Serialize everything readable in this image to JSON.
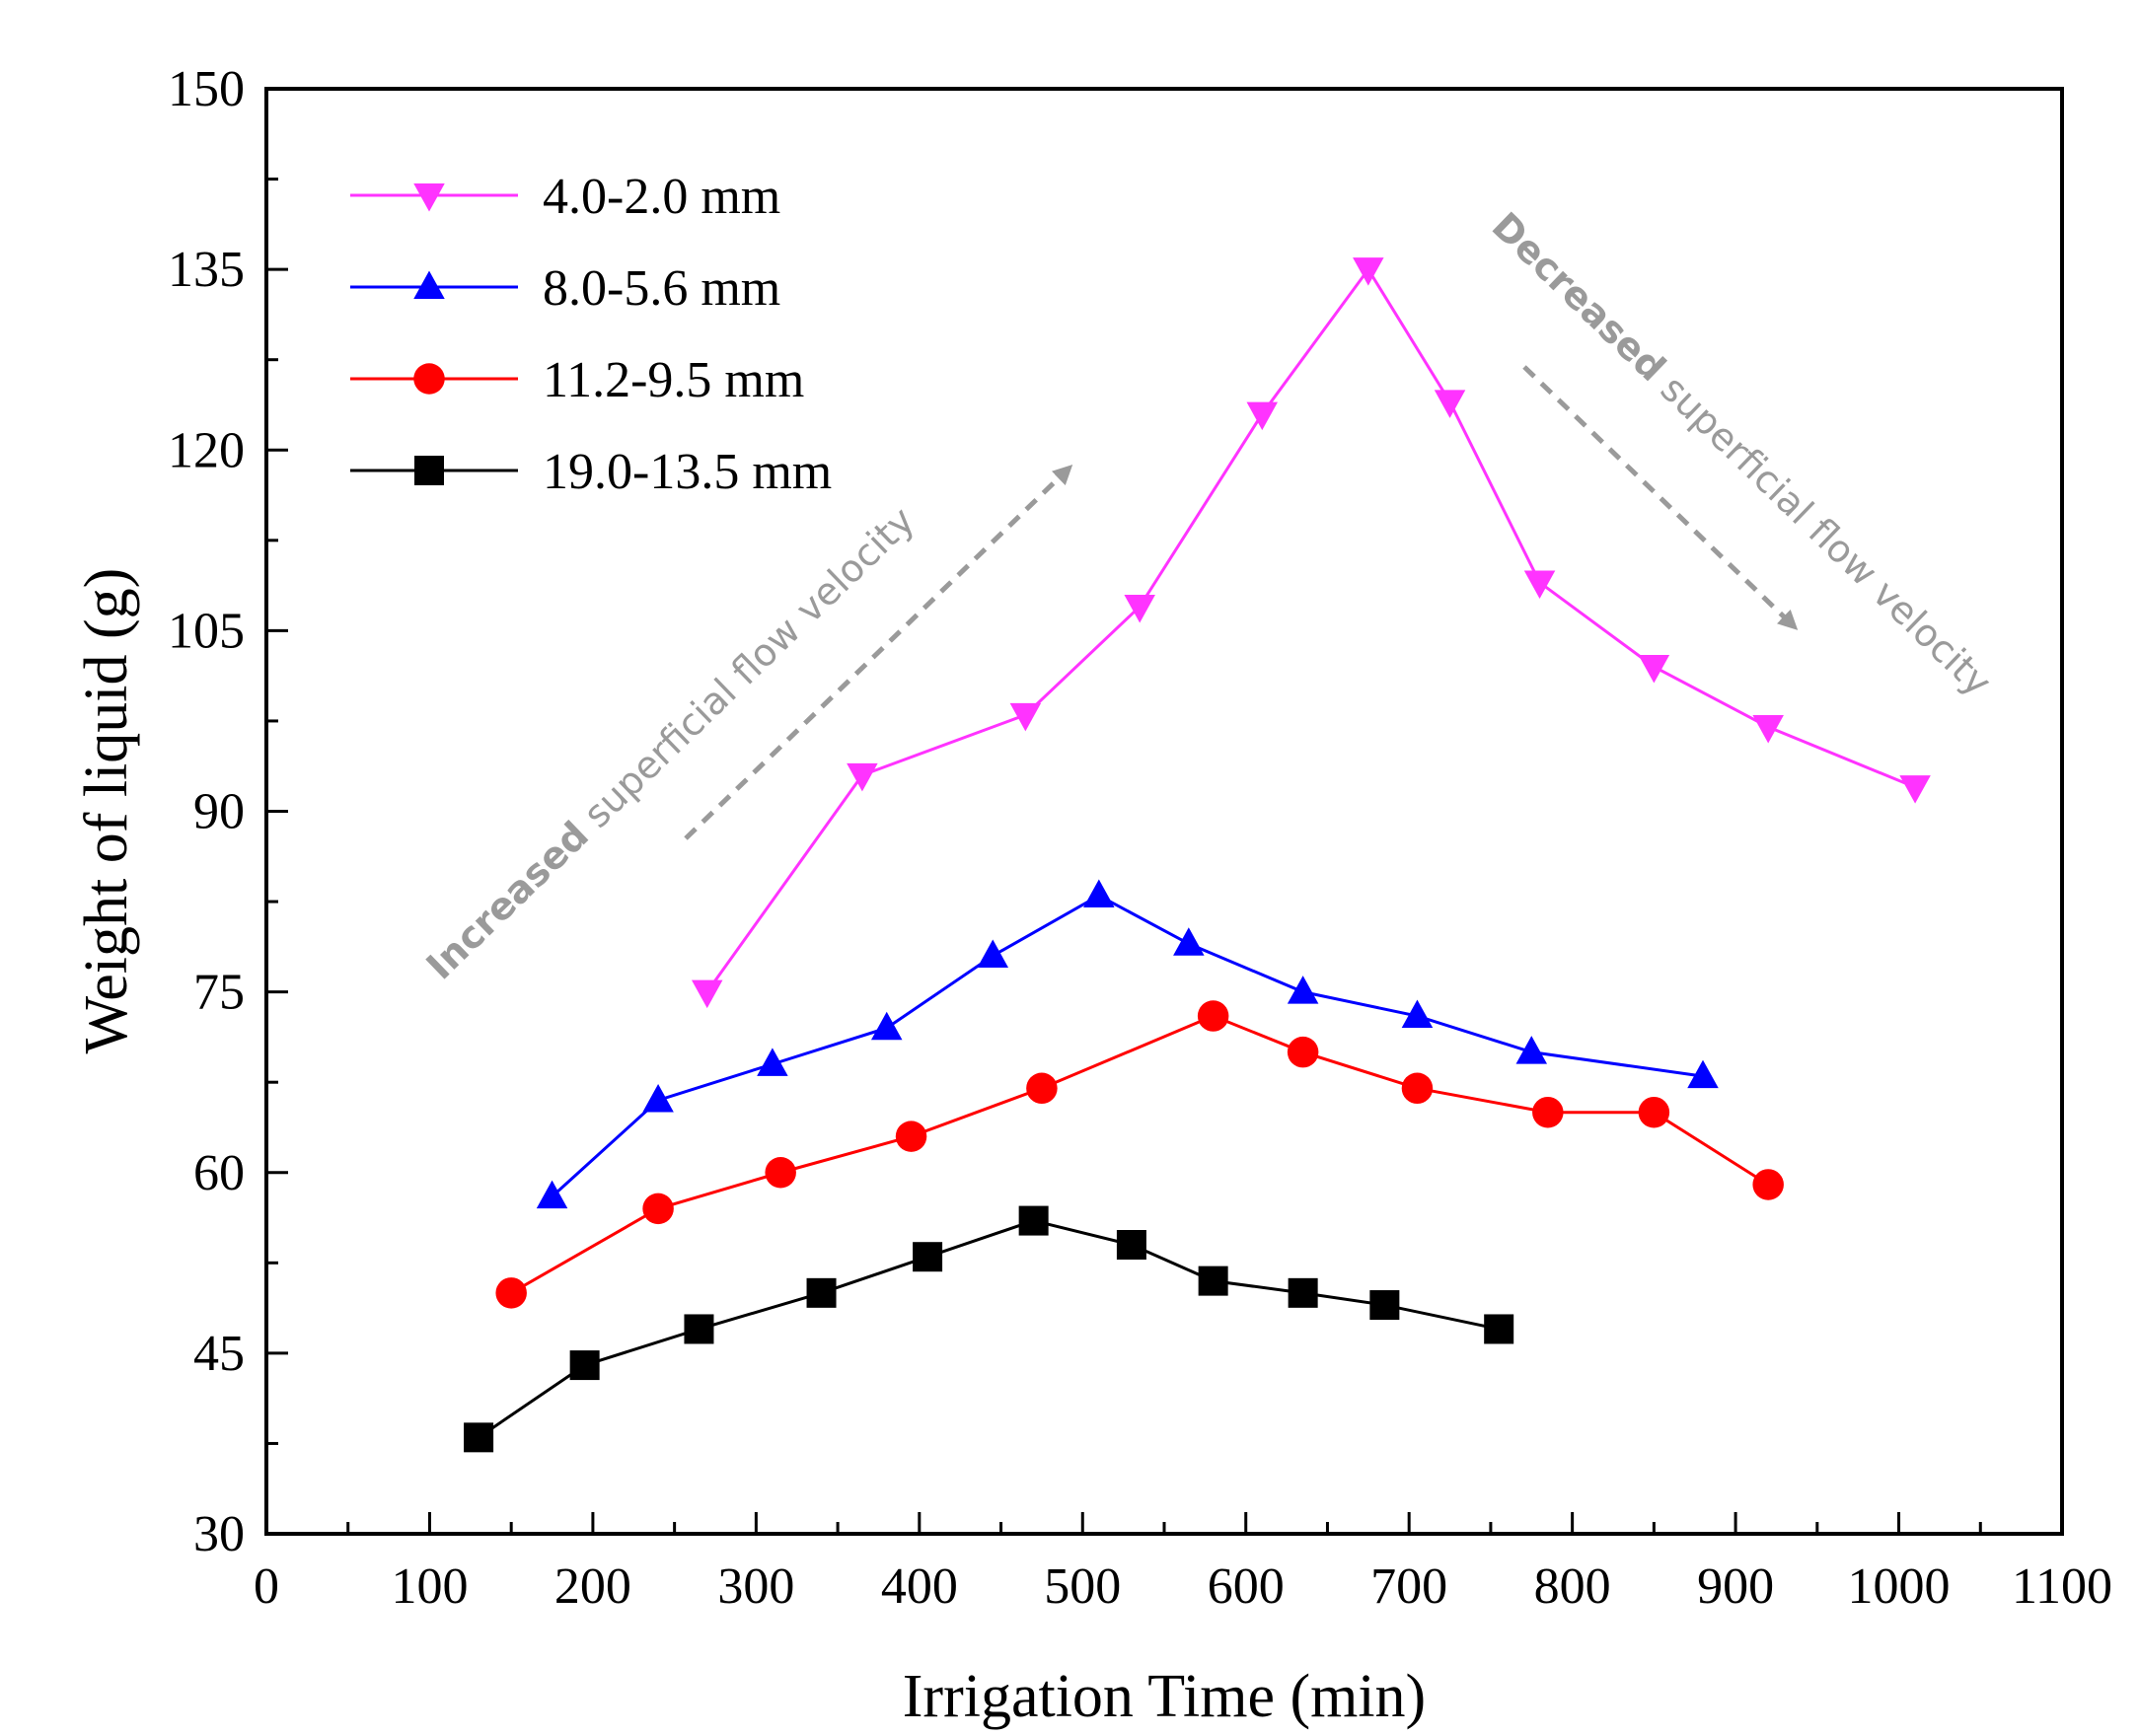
{
  "chart_data": {
    "type": "line",
    "title": "",
    "xlabel": "Irrigation Time (min)",
    "ylabel": "Weight of liquid (g)",
    "xlim": [
      0,
      1100
    ],
    "ylim": [
      30,
      150
    ],
    "x_ticks": [
      0,
      100,
      200,
      300,
      400,
      500,
      600,
      700,
      800,
      900,
      1000,
      1100
    ],
    "x_tick_labels": [
      "0",
      "100",
      "200",
      "300",
      "400",
      "500",
      "600",
      "700",
      "800",
      "900",
      "1000",
      "1100"
    ],
    "y_ticks": [
      30,
      45,
      60,
      75,
      90,
      105,
      120,
      135,
      150
    ],
    "y_tick_labels": [
      "30",
      "45",
      "60",
      "75",
      "90",
      "105",
      "120",
      "135",
      "150"
    ],
    "grid": false,
    "legend_position": "top-left",
    "series": [
      {
        "name": "4.0-2.0 mm",
        "color": "#ff33ff",
        "marker": "triangle-down",
        "x": [
          270,
          365,
          465,
          535,
          610,
          675,
          725,
          780,
          850,
          920,
          1010
        ],
        "y": [
          75,
          93,
          98,
          107,
          123,
          135,
          124,
          109,
          102,
          97,
          92
        ]
      },
      {
        "name": "8.0-5.6 mm",
        "color": "#0000ff",
        "marker": "triangle-up",
        "x": [
          175,
          240,
          310,
          380,
          445,
          510,
          565,
          635,
          705,
          775,
          880
        ],
        "y": [
          58,
          66,
          69,
          72,
          78,
          83,
          79,
          75,
          73,
          70,
          68
        ]
      },
      {
        "name": "11.2-9.5 mm",
        "color": "#ff0000",
        "marker": "circle",
        "x": [
          150,
          240,
          315,
          395,
          475,
          580,
          635,
          705,
          785,
          850,
          920
        ],
        "y": [
          50,
          57,
          60,
          63,
          67,
          73,
          70,
          67,
          65,
          65,
          59
        ]
      },
      {
        "name": "19.0-13.5 mm",
        "color": "#000000",
        "marker": "square",
        "x": [
          130,
          195,
          265,
          340,
          405,
          470,
          530,
          580,
          635,
          685,
          755
        ],
        "y": [
          38,
          44,
          47,
          50,
          53,
          56,
          54,
          51,
          50,
          49,
          47
        ]
      }
    ],
    "annotations": [
      {
        "id": "increased",
        "bold": "Increased",
        "rest": " superficial flow velocity",
        "arrow": "up-right",
        "color": "#9a9a9a"
      },
      {
        "id": "decreased",
        "bold": "Decreased",
        "rest": " superficial flow velocity",
        "arrow": "down-right",
        "color": "#9a9a9a"
      }
    ]
  }
}
